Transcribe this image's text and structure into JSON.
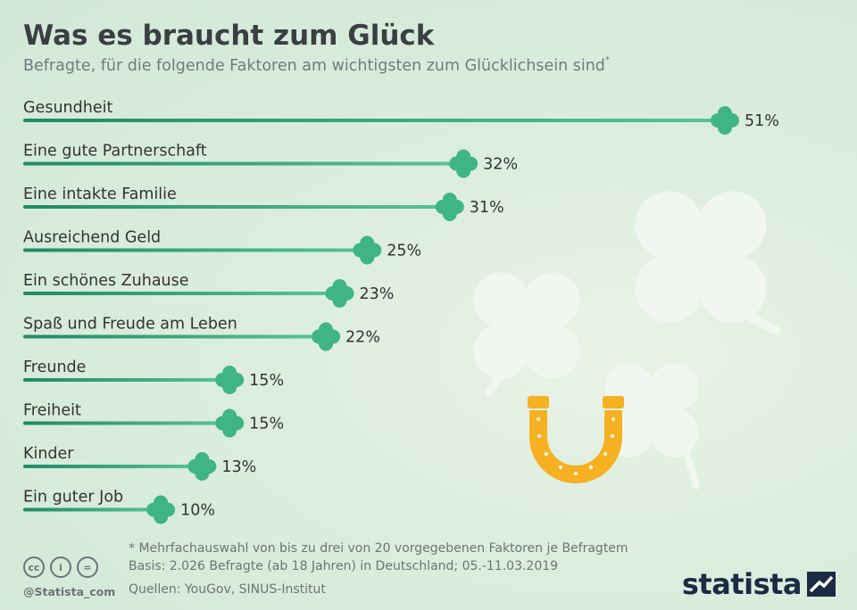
{
  "title": "Was es braucht zum Glück",
  "subtitle": "Befragte, für die folgende Faktoren am wichtigsten zum Glücklichsein sind",
  "subtitle_mark": "*",
  "colors": {
    "bar": "#2e9a72",
    "clover": "#3fb582",
    "horseshoe": "#f5b121",
    "text": "#333333"
  },
  "chart_data": {
    "type": "bar",
    "orientation": "horizontal",
    "categories": [
      "Gesundheit",
      "Eine gute Partnerschaft",
      "Eine intakte Familie",
      "Ausreichend Geld",
      "Ein schönes Zuhause",
      "Spaß und Freude am Leben",
      "Freunde",
      "Freiheit",
      "Kinder",
      "Ein guter Job"
    ],
    "values": [
      51,
      32,
      31,
      25,
      23,
      22,
      15,
      15,
      13,
      10
    ],
    "value_labels": [
      "51%",
      "32%",
      "31%",
      "25%",
      "23%",
      "22%",
      "15%",
      "15%",
      "13%",
      "10%"
    ],
    "unit": "%",
    "xlim": [
      0,
      51
    ],
    "grid": false,
    "legend": "none"
  },
  "footer": {
    "note": "* Mehrfachauswahl von bis zu drei von 20 vorgegebenen Faktoren je Befragtem",
    "basis": "Basis: 2.026 Befragte (ab 18 Jahren) in Deutschland; 05.-11.03.2019",
    "sources": "Quellen: YouGov, SINUS-Institut",
    "handle": "@Statista_com",
    "brand": "statista",
    "cc_icons": [
      "cc",
      "i",
      "="
    ]
  }
}
